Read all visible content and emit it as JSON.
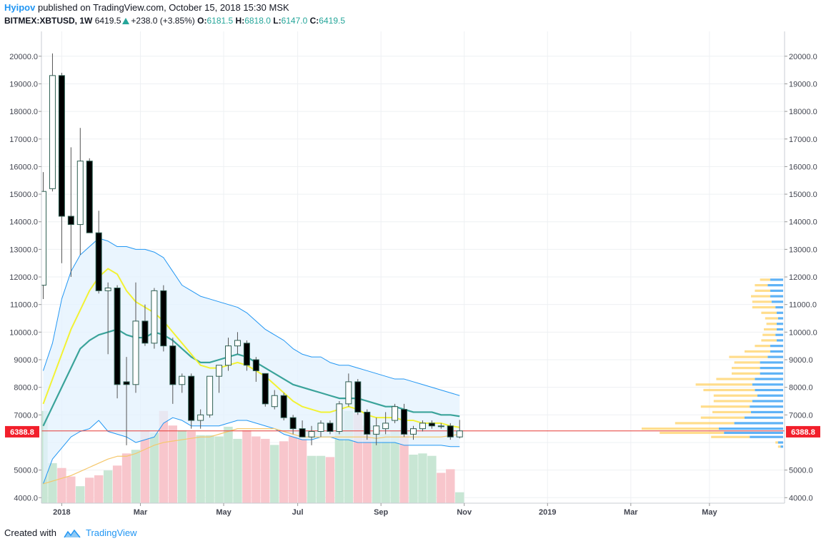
{
  "header": {
    "author": "Hyipov",
    "published_text": "published on TradingView.com, October 15, 2018 15:30 MSK",
    "symbol": "BITMEX:XBTUSD, 1W",
    "price": "6419.5",
    "change": "+238.0 (+3.85%)",
    "open_label": "O:",
    "open": "6181.5",
    "high_label": "H:",
    "high": "6818.0",
    "low_label": "L:",
    "low": "6147.0",
    "close_label": "C:",
    "close": "6419.5"
  },
  "footer": {
    "created_with": "Created with",
    "brand": "TradingView"
  },
  "colors": {
    "up_body": "#ffffff",
    "down_body": "#000000",
    "candle_border": "#2e5f52",
    "vol_up": "#c8e6d4",
    "vol_down": "#f8c6cc",
    "ema_fast": "#f2f233",
    "ema_mid": "#3aa39a",
    "sma_slow": "#f5c76b",
    "band": "#2196f3",
    "band_fill": "#e3f2fd",
    "price_line": "#e53935",
    "vp_up": "#42a5f5",
    "vp_down": "#ffd166"
  },
  "chart_data": {
    "type": "candlestick",
    "timeframe": "1W",
    "y_range": [
      3800,
      20900
    ],
    "y_ticks": [
      4000,
      5000,
      6000,
      7000,
      8000,
      9000,
      10000,
      11000,
      12000,
      13000,
      14000,
      15000,
      16000,
      17000,
      18000,
      19000,
      20000
    ],
    "y_tick_labels": [
      "4000.0",
      "5000.0",
      "",
      "7000.0",
      "8000.0",
      "9000.0",
      "10000.0",
      "11000.0",
      "12000.0",
      "13000.0",
      "14000.0",
      "15000.0",
      "16000.0",
      "17000.0",
      "18000.0",
      "19000.0",
      "20000.0"
    ],
    "x_labels": [
      "2018",
      "Mar",
      "May",
      "Jul",
      "Sep",
      "Nov",
      "2019",
      "Mar",
      "May"
    ],
    "x_label_index": [
      2,
      10.5,
      19.5,
      27.5,
      36.5,
      45.5,
      54.5,
      63.5,
      72
    ],
    "price_line": 6419.5,
    "price_label": "6419.5",
    "marker": 6388.8,
    "marker_label": "6388.8",
    "candles": [
      {
        "o": 11700,
        "h": 15800,
        "l": 11200,
        "c": 15100
      },
      {
        "o": 15200,
        "h": 20100,
        "l": 15100,
        "c": 19300
      },
      {
        "o": 19300,
        "h": 19400,
        "l": 12500,
        "c": 14200
      },
      {
        "o": 14200,
        "h": 16700,
        "l": 12000,
        "c": 13900
      },
      {
        "o": 13900,
        "h": 17400,
        "l": 12800,
        "c": 16200
      },
      {
        "o": 16200,
        "h": 16300,
        "l": 13600,
        "c": 13600
      },
      {
        "o": 13600,
        "h": 14400,
        "l": 11400,
        "c": 11500
      },
      {
        "o": 11500,
        "h": 11800,
        "l": 9200,
        "c": 11600
      },
      {
        "o": 11600,
        "h": 11700,
        "l": 7600,
        "c": 8100
      },
      {
        "o": 8200,
        "h": 9100,
        "l": 5900,
        "c": 8100
      },
      {
        "o": 8100,
        "h": 11800,
        "l": 7800,
        "c": 10400
      },
      {
        "o": 10400,
        "h": 11000,
        "l": 9500,
        "c": 9600
      },
      {
        "o": 9600,
        "h": 11600,
        "l": 9400,
        "c": 11500
      },
      {
        "o": 11500,
        "h": 11700,
        "l": 9300,
        "c": 9500
      },
      {
        "o": 9500,
        "h": 9800,
        "l": 7400,
        "c": 8100
      },
      {
        "o": 8100,
        "h": 8500,
        "l": 7800,
        "c": 8400
      },
      {
        "o": 8400,
        "h": 8500,
        "l": 6500,
        "c": 6800
      },
      {
        "o": 6800,
        "h": 7200,
        "l": 6500,
        "c": 7000
      },
      {
        "o": 7000,
        "h": 8400,
        "l": 6900,
        "c": 8400
      },
      {
        "o": 8400,
        "h": 8800,
        "l": 7800,
        "c": 8800
      },
      {
        "o": 8800,
        "h": 9800,
        "l": 8600,
        "c": 9500
      },
      {
        "o": 9500,
        "h": 10000,
        "l": 9200,
        "c": 9700
      },
      {
        "o": 9600,
        "h": 9700,
        "l": 8600,
        "c": 8800
      },
      {
        "o": 9000,
        "h": 9100,
        "l": 8200,
        "c": 8600
      },
      {
        "o": 8500,
        "h": 8500,
        "l": 7300,
        "c": 7400
      },
      {
        "o": 7300,
        "h": 7900,
        "l": 7200,
        "c": 7700
      },
      {
        "o": 7700,
        "h": 7800,
        "l": 6800,
        "c": 6900
      },
      {
        "o": 6900,
        "h": 7000,
        "l": 6300,
        "c": 6500
      },
      {
        "o": 6500,
        "h": 6800,
        "l": 6200,
        "c": 6200
      },
      {
        "o": 6200,
        "h": 6600,
        "l": 5900,
        "c": 6400
      },
      {
        "o": 6400,
        "h": 6800,
        "l": 6200,
        "c": 6700
      },
      {
        "o": 6700,
        "h": 6800,
        "l": 6300,
        "c": 6400
      },
      {
        "o": 6400,
        "h": 7500,
        "l": 6300,
        "c": 7400
      },
      {
        "o": 7400,
        "h": 8500,
        "l": 7300,
        "c": 8200
      },
      {
        "o": 8200,
        "h": 8300,
        "l": 7000,
        "c": 7100
      },
      {
        "o": 7100,
        "h": 7200,
        "l": 6100,
        "c": 6300
      },
      {
        "o": 6300,
        "h": 6900,
        "l": 5900,
        "c": 6600
      },
      {
        "o": 6500,
        "h": 7100,
        "l": 6300,
        "c": 6700
      },
      {
        "o": 6800,
        "h": 7400,
        "l": 6700,
        "c": 7300
      },
      {
        "o": 7200,
        "h": 7400,
        "l": 6200,
        "c": 6300
      },
      {
        "o": 6300,
        "h": 6600,
        "l": 6100,
        "c": 6500
      },
      {
        "o": 6500,
        "h": 6800,
        "l": 6400,
        "c": 6700
      },
      {
        "o": 6700,
        "h": 6800,
        "l": 6500,
        "c": 6600
      },
      {
        "o": 6600,
        "h": 6700,
        "l": 6500,
        "c": 6600
      },
      {
        "o": 6600,
        "h": 6700,
        "l": 6100,
        "c": 6200
      },
      {
        "o": 6200,
        "h": 6818,
        "l": 6147,
        "c": 6419.5
      }
    ],
    "volume": [
      {
        "v": 0.76,
        "up": true
      },
      {
        "v": 0.33,
        "up": true
      },
      {
        "v": 0.29,
        "up": false
      },
      {
        "v": 0.22,
        "up": false
      },
      {
        "v": 0.14,
        "up": true
      },
      {
        "v": 0.21,
        "up": false
      },
      {
        "v": 0.23,
        "up": false
      },
      {
        "v": 0.27,
        "up": true
      },
      {
        "v": 0.31,
        "up": false
      },
      {
        "v": 0.41,
        "up": false
      },
      {
        "v": 0.44,
        "up": true
      },
      {
        "v": 0.6,
        "up": false
      },
      {
        "v": 0.58,
        "up": true
      },
      {
        "v": 0.76,
        "up": false
      },
      {
        "v": 0.64,
        "up": false
      },
      {
        "v": 0.6,
        "up": true
      },
      {
        "v": 0.59,
        "up": false
      },
      {
        "v": 0.56,
        "up": true
      },
      {
        "v": 0.56,
        "up": true
      },
      {
        "v": 0.55,
        "up": true
      },
      {
        "v": 0.63,
        "up": true
      },
      {
        "v": 0.53,
        "up": true
      },
      {
        "v": 0.6,
        "up": false
      },
      {
        "v": 0.55,
        "up": false
      },
      {
        "v": 0.53,
        "up": false
      },
      {
        "v": 0.48,
        "up": true
      },
      {
        "v": 0.51,
        "up": false
      },
      {
        "v": 0.55,
        "up": false
      },
      {
        "v": 0.53,
        "up": false
      },
      {
        "v": 0.39,
        "up": true
      },
      {
        "v": 0.39,
        "up": true
      },
      {
        "v": 0.38,
        "up": false
      },
      {
        "v": 0.6,
        "up": true
      },
      {
        "v": 0.76,
        "up": true
      },
      {
        "v": 0.74,
        "up": false
      },
      {
        "v": 0.64,
        "up": false
      },
      {
        "v": 0.6,
        "up": true
      },
      {
        "v": 0.57,
        "up": true
      },
      {
        "v": 0.6,
        "up": true
      },
      {
        "v": 0.62,
        "up": false
      },
      {
        "v": 0.4,
        "up": true
      },
      {
        "v": 0.41,
        "up": true
      },
      {
        "v": 0.39,
        "up": true
      },
      {
        "v": 0.25,
        "up": false
      },
      {
        "v": 0.28,
        "up": false
      },
      {
        "v": 0.09,
        "up": true
      }
    ],
    "ema_fast": [
      7400,
      8300,
      9200,
      10100,
      10800,
      11500,
      12000,
      12300,
      12100,
      11500,
      11100,
      10900,
      10700,
      10400,
      10000,
      9600,
      9200,
      8800,
      8700,
      8700,
      8800,
      8900,
      8800,
      8600,
      8400,
      8100,
      7800,
      7500,
      7300,
      7200,
      7100,
      7100,
      7200,
      7300,
      7200,
      7000,
      6900,
      6900,
      6900,
      6800,
      6800,
      6700,
      6700,
      6700,
      6600,
      6550
    ],
    "ema_mid": [
      6600,
      7300,
      8000,
      8700,
      9400,
      9700,
      9900,
      10000,
      10100,
      9900,
      9800,
      9800,
      10000,
      9900,
      9700,
      9400,
      9100,
      8900,
      8900,
      9000,
      9100,
      9200,
      9100,
      8900,
      8700,
      8500,
      8300,
      8100,
      8000,
      7900,
      7800,
      7700,
      7600,
      7600,
      7600,
      7500,
      7400,
      7300,
      7300,
      7200,
      7100,
      7100,
      7100,
      7000,
      7000,
      6950
    ],
    "sma_slow": [
      4500,
      4600,
      4700,
      4800,
      4950,
      5100,
      5250,
      5400,
      5500,
      5500,
      5600,
      5750,
      5900,
      6000,
      6050,
      6100,
      6150,
      6200,
      6200,
      6300,
      6400,
      6500,
      6500,
      6500,
      6500,
      6500,
      6400,
      6300,
      6200,
      6200,
      6200,
      6200,
      6200,
      6200,
      6200,
      6200,
      6150,
      6200,
      6200,
      6200,
      6200,
      6200,
      6200,
      6200,
      6250,
      6300
    ],
    "band_upper": [
      8600,
      9600,
      11200,
      12200,
      12800,
      13100,
      13400,
      13300,
      13100,
      13100,
      13000,
      13000,
      12900,
      12700,
      12200,
      11700,
      11500,
      11300,
      11200,
      11100,
      11000,
      10900,
      10700,
      10400,
      10100,
      9900,
      9700,
      9400,
      9200,
      9100,
      9100,
      8900,
      8800,
      8800,
      8700,
      8600,
      8500,
      8400,
      8300,
      8300,
      8200,
      8100,
      8000,
      7900,
      7800,
      7700
    ],
    "band_lower": [
      4500,
      5400,
      5800,
      6200,
      6400,
      6500,
      6800,
      6400,
      6300,
      6200,
      6000,
      6100,
      6200,
      6700,
      6900,
      6800,
      6600,
      6600,
      6600,
      6600,
      6700,
      6800,
      6800,
      6700,
      6600,
      6500,
      6300,
      6200,
      6100,
      6100,
      6200,
      6200,
      6100,
      6100,
      6000,
      6000,
      6000,
      6000,
      6000,
      5900,
      5900,
      5900,
      5900,
      5900,
      5850,
      5850
    ],
    "volume_profile": [
      {
        "price": 11900,
        "up": 0.1,
        "down": 0.08
      },
      {
        "price": 11700,
        "up": 0.12,
        "down": 0.1
      },
      {
        "price": 11500,
        "up": 0.1,
        "down": 0.12
      },
      {
        "price": 11300,
        "up": 0.1,
        "down": 0.15
      },
      {
        "price": 11100,
        "up": 0.09,
        "down": 0.15
      },
      {
        "price": 10900,
        "up": 0.06,
        "down": 0.18
      },
      {
        "price": 10700,
        "up": 0.05,
        "down": 0.12
      },
      {
        "price": 10500,
        "up": 0.04,
        "down": 0.1
      },
      {
        "price": 10300,
        "up": 0.05,
        "down": 0.08
      },
      {
        "price": 10100,
        "up": 0.05,
        "down": 0.1
      },
      {
        "price": 9900,
        "up": 0.06,
        "down": 0.1
      },
      {
        "price": 9700,
        "up": 0.05,
        "down": 0.12
      },
      {
        "price": 9500,
        "up": 0.1,
        "down": 0.12
      },
      {
        "price": 9300,
        "up": 0.1,
        "down": 0.2
      },
      {
        "price": 9100,
        "up": 0.12,
        "down": 0.3
      },
      {
        "price": 8900,
        "up": 0.18,
        "down": 0.2
      },
      {
        "price": 8700,
        "up": 0.18,
        "down": 0.22
      },
      {
        "price": 8500,
        "up": 0.18,
        "down": 0.22
      },
      {
        "price": 8300,
        "up": 0.22,
        "down": 0.3
      },
      {
        "price": 8100,
        "up": 0.24,
        "down": 0.44
      },
      {
        "price": 7900,
        "up": 0.22,
        "down": 0.4
      },
      {
        "price": 7700,
        "up": 0.2,
        "down": 0.34
      },
      {
        "price": 7500,
        "up": 0.24,
        "down": 0.3
      },
      {
        "price": 7300,
        "up": 0.26,
        "down": 0.38
      },
      {
        "price": 7100,
        "up": 0.25,
        "down": 0.3
      },
      {
        "price": 6900,
        "up": 0.3,
        "down": 0.34
      },
      {
        "price": 6700,
        "up": 0.38,
        "down": 0.46
      },
      {
        "price": 6500,
        "up": 0.5,
        "down": 0.6
      },
      {
        "price": 6350,
        "up": 0.46,
        "down": 0.5
      },
      {
        "price": 6200,
        "up": 0.26,
        "down": 0.3
      },
      {
        "price": 6000,
        "up": 0.04,
        "down": 0.02
      },
      {
        "price": 5850,
        "up": 0.02,
        "down": 0.02
      }
    ]
  }
}
